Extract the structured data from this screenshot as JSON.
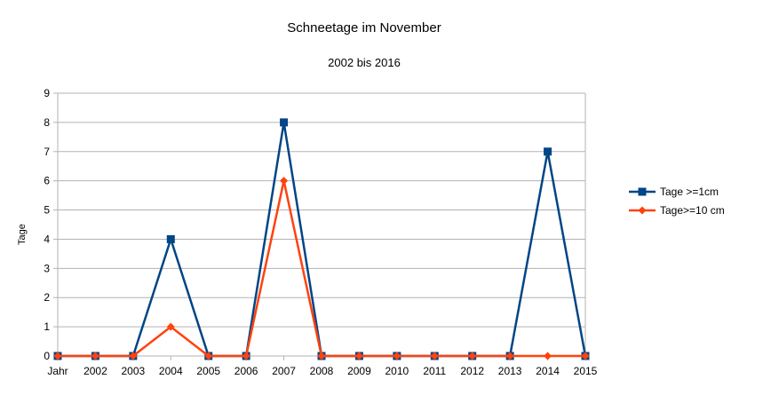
{
  "chart_data": {
    "type": "line",
    "title": "Schneetage im November",
    "subtitle": "2002 bis 2016",
    "xlabel": "",
    "ylabel": "Tage",
    "categories": [
      "Jahr",
      "2002",
      "2003",
      "2004",
      "2005",
      "2006",
      "2007",
      "2008",
      "2009",
      "2010",
      "2011",
      "2012",
      "2013",
      "2014",
      "2015"
    ],
    "ylim": [
      0,
      9
    ],
    "yticks": [
      0,
      1,
      2,
      3,
      4,
      5,
      6,
      7,
      8,
      9
    ],
    "grid": true,
    "legend_position": "right",
    "series": [
      {
        "name": "Tage >=1cm",
        "color": "#004586",
        "marker": "square",
        "values": [
          0,
          0,
          0,
          4,
          0,
          0,
          8,
          0,
          0,
          0,
          0,
          0,
          0,
          7,
          0
        ]
      },
      {
        "name": "Tage>=10 cm",
        "color": "#ff420e",
        "marker": "diamond",
        "values": [
          0,
          0,
          0,
          1,
          0,
          0,
          6,
          0,
          0,
          0,
          0,
          0,
          0,
          0,
          0
        ]
      }
    ]
  }
}
